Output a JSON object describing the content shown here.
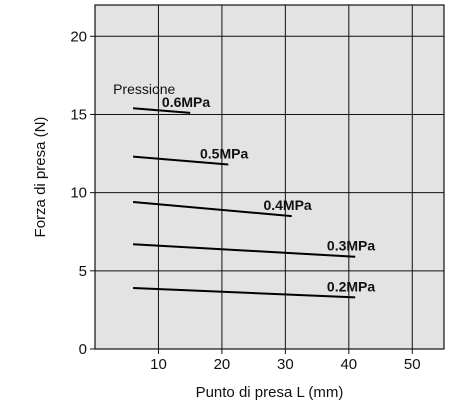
{
  "chart_data": {
    "type": "line",
    "title": "",
    "xlabel": "Punto di presa L (mm)",
    "ylabel": "Forza di presa  (N)",
    "xlim": [
      0,
      55
    ],
    "ylim": [
      0,
      22
    ],
    "x_ticks": [
      10,
      20,
      30,
      40,
      50
    ],
    "y_ticks": [
      0,
      5,
      10,
      15,
      20
    ],
    "x_tick_labels": [
      "10",
      "20",
      "30",
      "40",
      "50"
    ],
    "y_tick_labels": [
      "0",
      "5",
      "10",
      "15",
      "20"
    ],
    "grid": true,
    "background": "#e3e3e3",
    "line_color": "#000000",
    "annotation": "Pressione",
    "series": [
      {
        "name": "0.6MPa",
        "x": [
          6,
          15
        ],
        "y": [
          15.4,
          15.1
        ]
      },
      {
        "name": "0.5MPa",
        "x": [
          6,
          21
        ],
        "y": [
          12.3,
          11.8
        ]
      },
      {
        "name": "0.4MPa",
        "x": [
          6,
          31
        ],
        "y": [
          9.4,
          8.5
        ]
      },
      {
        "name": "0.3MPa",
        "x": [
          6,
          41
        ],
        "y": [
          6.7,
          5.9
        ]
      },
      {
        "name": "0.2MPa",
        "x": [
          6,
          41
        ],
        "y": [
          3.9,
          3.3
        ]
      }
    ]
  }
}
